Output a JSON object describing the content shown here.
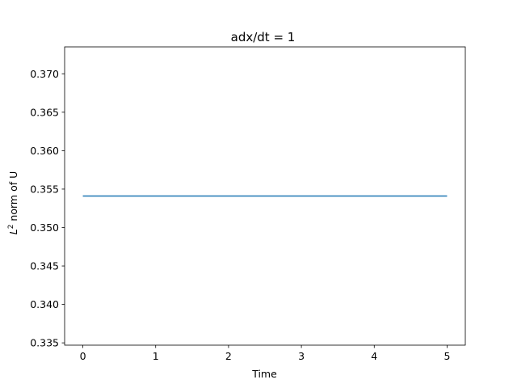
{
  "chart_data": {
    "type": "line",
    "title": "adx/dt = 1",
    "xlabel": "Time",
    "ylabel_main": "L",
    "ylabel_sup": "2",
    "ylabel_rest": " norm of U",
    "xlim": [
      -0.25,
      5.25
    ],
    "ylim": [
      0.3347,
      0.3735
    ],
    "xticks": [
      0,
      1,
      2,
      3,
      4,
      5
    ],
    "xtick_labels": [
      "0",
      "1",
      "2",
      "3",
      "4",
      "5"
    ],
    "yticks": [
      0.335,
      0.34,
      0.345,
      0.35,
      0.355,
      0.36,
      0.365,
      0.37
    ],
    "ytick_labels": [
      "0.335",
      "0.340",
      "0.345",
      "0.350",
      "0.355",
      "0.360",
      "0.365",
      "0.370"
    ],
    "grid": false,
    "series": [
      {
        "color": "#1f77b4",
        "x": [
          0,
          5
        ],
        "y": [
          0.3541,
          0.3541
        ]
      }
    ]
  }
}
